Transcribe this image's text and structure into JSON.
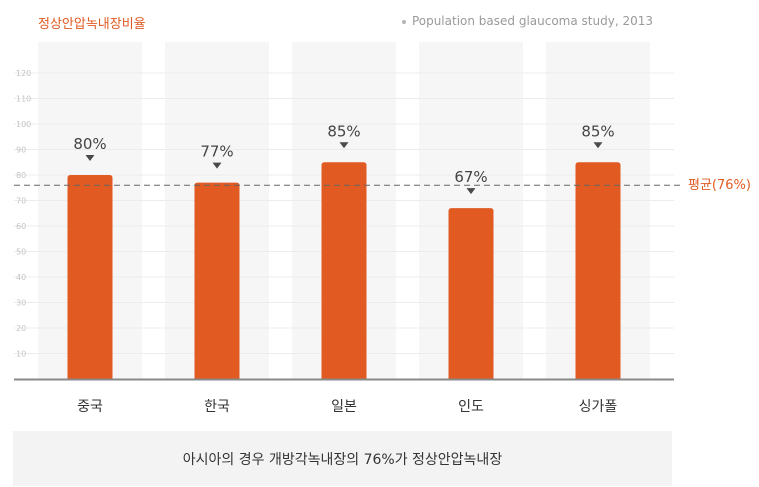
{
  "header": {
    "title": "정상안압녹내장비율",
    "source": "Population based glaucoma study, 2013"
  },
  "chart_data": {
    "type": "bar",
    "title": "정상안압녹내장비율",
    "categories": [
      "중국",
      "한국",
      "일본",
      "인도",
      "싱가폴"
    ],
    "values": [
      80,
      77,
      85,
      67,
      85
    ],
    "value_labels": [
      "80%",
      "77%",
      "85%",
      "67%",
      "85%"
    ],
    "ylim": [
      0,
      130
    ],
    "yticks": [
      10,
      20,
      30,
      40,
      50,
      60,
      70,
      80,
      90,
      100,
      110,
      120
    ],
    "xlabel": "",
    "ylabel": "",
    "grid": true,
    "reference_line": {
      "value": 76,
      "label": "평균(76%)"
    },
    "colors": {
      "bar": "#e05a22",
      "average": "#e05a22",
      "column_bg": "#f6f6f6",
      "grid": "#ececec"
    }
  },
  "caption": "아시아의 경우 개방각녹내장의 76%가 정상안압녹내장"
}
